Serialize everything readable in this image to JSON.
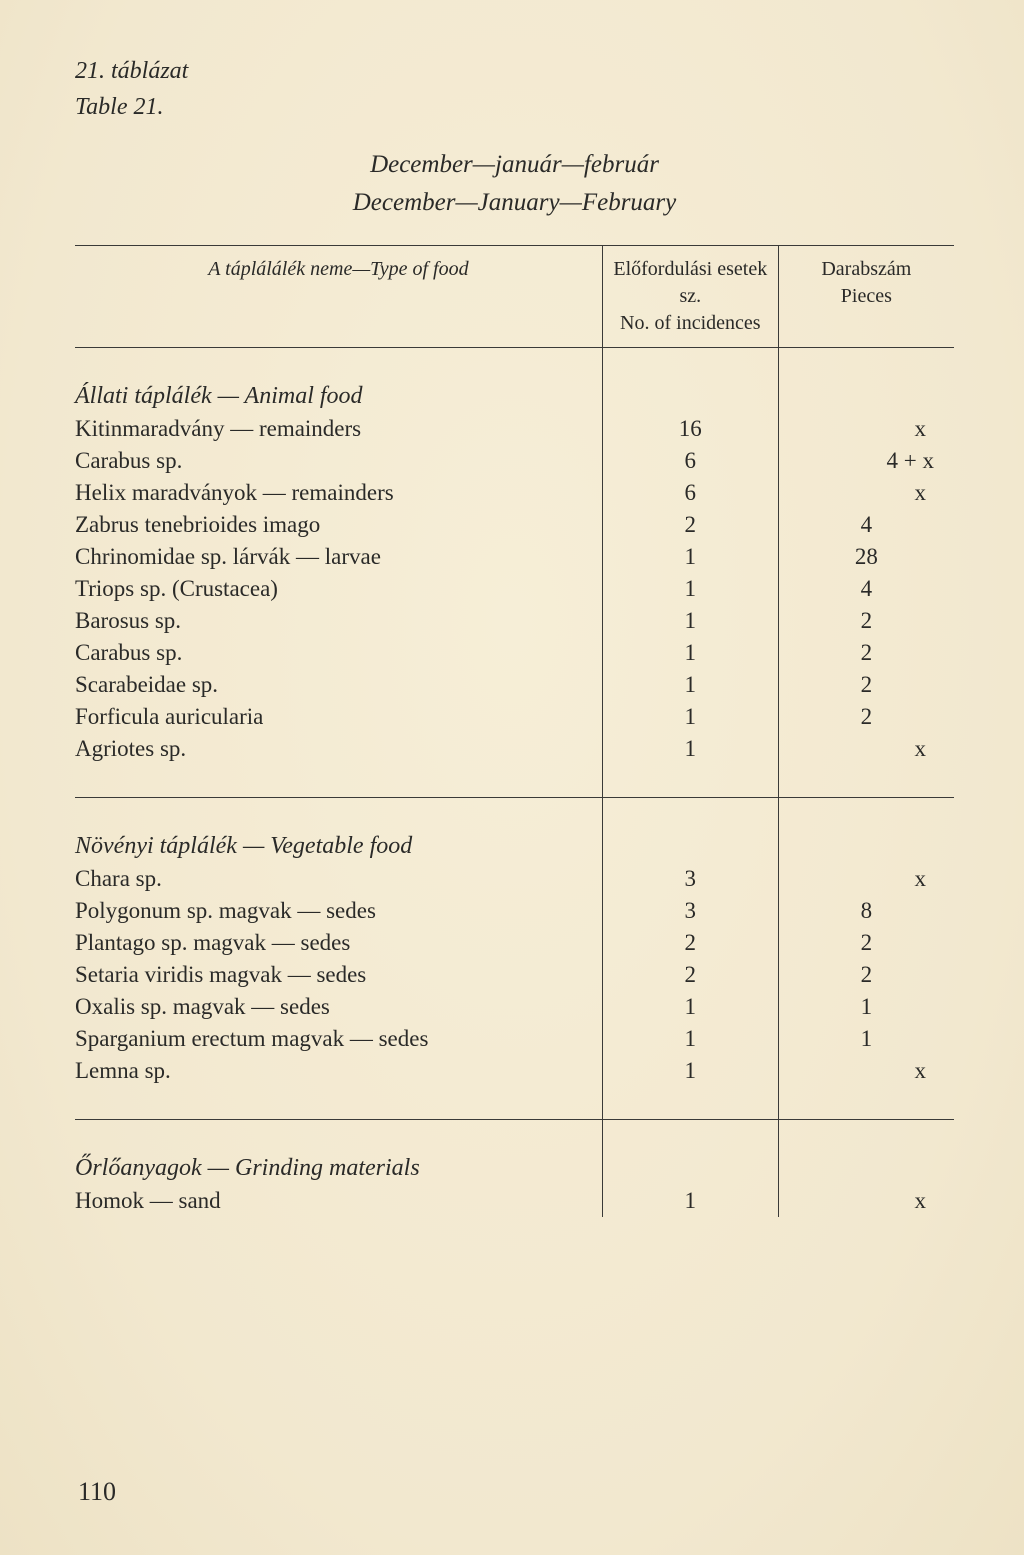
{
  "header": {
    "label_hu": "21. táblázat",
    "label_en": "Table 21.",
    "title_hu": "December—január—február",
    "title_en": "December—January—February"
  },
  "table_head": {
    "type_label": "A táplálálék neme—Type of food",
    "incidences_line1": "Előfordulási esetek sz.",
    "incidences_line2": "No. of incidences",
    "pieces_line1": "Darabszám",
    "pieces_line2": "Pieces"
  },
  "sections": {
    "animal": {
      "title": "Állati táplálék — Animal food",
      "rows": [
        {
          "name": "Kitinmaradvány — remainders",
          "inc": "16",
          "pc": "x",
          "pc_class": "pieces-right"
        },
        {
          "name": "Carabus sp.",
          "inc": "6",
          "pc": "4 +  x",
          "pc_class": "pieces-mixed"
        },
        {
          "name": "Helix maradványok — remainders",
          "inc": "6",
          "pc": "x",
          "pc_class": "pieces-right"
        },
        {
          "name": "Zabrus tenebrioides imago",
          "inc": "2",
          "pc": "4",
          "pc_class": "pieces-center"
        },
        {
          "name": "Chrinomidae sp. lárvák — larvae",
          "inc": "1",
          "pc": "28",
          "pc_class": "pieces-center"
        },
        {
          "name": "Triops sp. (Crustacea)",
          "inc": "1",
          "pc": "4",
          "pc_class": "pieces-center"
        },
        {
          "name": "Barosus sp.",
          "inc": "1",
          "pc": "2",
          "pc_class": "pieces-center"
        },
        {
          "name": "Carabus sp.",
          "inc": "1",
          "pc": "2",
          "pc_class": "pieces-center"
        },
        {
          "name": "Scarabeidae sp.",
          "inc": "1",
          "pc": "2",
          "pc_class": "pieces-center"
        },
        {
          "name": "Forficula auricularia",
          "inc": "1",
          "pc": "2",
          "pc_class": "pieces-center"
        },
        {
          "name": "Agriotes sp.",
          "inc": "1",
          "pc": "x",
          "pc_class": "pieces-right"
        }
      ]
    },
    "vegetable": {
      "title": "Növényi táplálék — Vegetable food",
      "rows": [
        {
          "name": "Chara sp.",
          "inc": "3",
          "pc": "x",
          "pc_class": "pieces-right"
        },
        {
          "name": "Polygonum sp. magvak — sedes",
          "inc": "3",
          "pc": "8",
          "pc_class": "pieces-center"
        },
        {
          "name": "Plantago sp. magvak — sedes",
          "inc": "2",
          "pc": "2",
          "pc_class": "pieces-center"
        },
        {
          "name": "Setaria viridis magvak — sedes",
          "inc": "2",
          "pc": "2",
          "pc_class": "pieces-center"
        },
        {
          "name": "Oxalis sp. magvak — sedes",
          "inc": "1",
          "pc": "1",
          "pc_class": "pieces-center"
        },
        {
          "name": "Sparganium erectum magvak — sedes",
          "inc": "1",
          "pc": "1",
          "pc_class": "pieces-center"
        },
        {
          "name": "Lemna sp.",
          "inc": "1",
          "pc": "x",
          "pc_class": "pieces-right"
        }
      ]
    },
    "grinding": {
      "title": "Őrlőanyagok — Grinding materials",
      "rows": [
        {
          "name": "Homok — sand",
          "inc": "1",
          "pc": "x",
          "pc_class": "pieces-right"
        }
      ]
    }
  },
  "page_number": "110",
  "colors": {
    "text": "#2a2a28",
    "rule": "#3a3a38",
    "background": "#f3ead2"
  }
}
